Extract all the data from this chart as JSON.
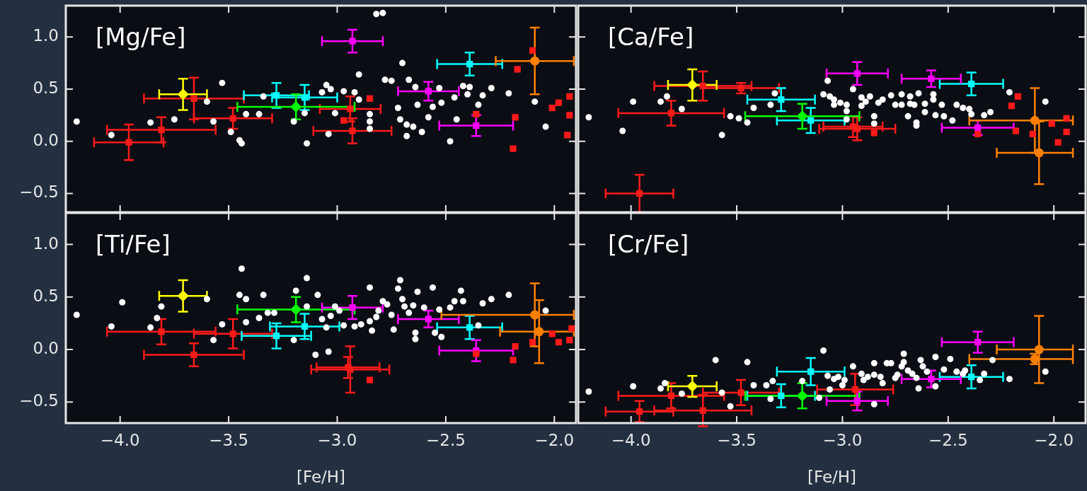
{
  "chart_data": [
    {
      "type": "scatter",
      "title": "[Mg/Fe]",
      "xlim": [
        -4.25,
        -1.9
      ],
      "ylim": [
        -0.68,
        1.3
      ],
      "xticks": [
        {
          "value": -4,
          "label": null
        },
        {
          "value": -3.5,
          "label": null
        },
        {
          "value": -3,
          "label": null
        },
        {
          "value": -2.5,
          "label": null
        },
        {
          "value": -2,
          "label": null
        }
      ],
      "yticks": [
        {
          "value": -0.5,
          "label": "−0.5"
        },
        {
          "value": 0,
          "label": "0.0"
        },
        {
          "value": 0.5,
          "label": "0.5"
        },
        {
          "value": 1,
          "label": "1.0"
        }
      ],
      "tick_labels": "y",
      "series": [
        {
          "color": "#ffffff",
          "marker": "circle",
          "x": [
            -4.2,
            -4.04,
            -3.86,
            -3.75,
            -3.6,
            -3.57,
            -3.53,
            -3.49,
            -3.45,
            -3.44,
            -3.42,
            -3.36,
            -3.34,
            -3.2,
            -3.14,
            -3.15,
            -3.07,
            -3.05,
            -3.03,
            -3.01,
            -3.04,
            -2.97,
            -2.92,
            -2.9,
            -2.9,
            -2.85,
            -2.85,
            -2.85,
            -2.82,
            -2.79,
            -2.78,
            -2.75,
            -2.7,
            -2.72,
            -2.71,
            -2.68,
            -2.68,
            -2.67,
            -2.64,
            -2.65,
            -2.63,
            -2.61,
            -2.58,
            -2.56,
            -2.53,
            -2.52,
            -2.48,
            -2.46,
            -2.45,
            -2.42,
            -2.39,
            -2.4,
            -2.35,
            -2.33,
            -2.29,
            -2.21,
            -2.09,
            -2.04
          ],
          "values": [
            0.19,
            0.06,
            0.18,
            0.21,
            0.38,
            0.19,
            0.56,
            0.09,
            0.01,
            -0.02,
            0.26,
            0.26,
            0.43,
            0.19,
            -0.02,
            0.27,
            0.47,
            0.54,
            0.5,
            0.27,
            0.07,
            0.48,
            0.47,
            0.64,
            0.4,
            0.26,
            0.19,
            0.12,
            1.22,
            1.23,
            0.59,
            0.58,
            0.75,
            0.32,
            0.21,
            0.16,
            0.05,
            0.59,
            0.52,
            0.14,
            0.35,
            0.09,
            0.23,
            0.33,
            0.51,
            0.37,
            0.0,
            0.42,
            0.21,
            0.53,
            0.52,
            0.45,
            0.35,
            0.44,
            0.51,
            0.46,
            0.38,
            0.14
          ]
        },
        {
          "color": "#ff1a1a",
          "marker": "square",
          "x": [
            -2.85,
            -2.97,
            -2.36,
            -2.18,
            -2.19,
            -2.17,
            -2.1,
            -2.01,
            -1.98,
            -1.93,
            -1.93,
            -1.94
          ],
          "values": [
            0.41,
            0.2,
            0.26,
            0.23,
            -0.07,
            0.69,
            0.87,
            0.32,
            0.37,
            0.43,
            0.25,
            0.06
          ]
        },
        {
          "color": "#ff1a1a",
          "marker": "square",
          "x": [
            -3.96,
            -3.81,
            -3.66,
            -3.48,
            -2.94,
            -2.93
          ],
          "values": [
            -0.01,
            0.11,
            0.41,
            0.22,
            0.31,
            0.1
          ],
          "xerrors": [
            0.16,
            0.25,
            0.23,
            0.18,
            0.14,
            0.18
          ],
          "errors": [
            0.17,
            0.12,
            0.2,
            0.1,
            0.12,
            0.12
          ]
        },
        {
          "color": "#ffff00",
          "marker": "diamond",
          "x": [
            -3.71
          ],
          "values": [
            0.45
          ],
          "xerrors": [
            0.11
          ],
          "errors": [
            0.15
          ]
        },
        {
          "color": "#00ffff",
          "marker": "square",
          "x": [
            -3.28,
            -3.15,
            -2.39
          ],
          "values": [
            0.44,
            0.42,
            0.74
          ],
          "xerrors": [
            0.15,
            0.15,
            0.15
          ],
          "errors": [
            0.12,
            0.12,
            0.11
          ]
        },
        {
          "color": "#00ff00",
          "marker": "diamond",
          "x": [
            -3.19
          ],
          "values": [
            0.33
          ],
          "xerrors": [
            0.27
          ],
          "errors": [
            0.12
          ]
        },
        {
          "color": "#ff00ff",
          "marker": "square",
          "x": [
            -2.93,
            -2.58,
            -2.36
          ],
          "values": [
            0.96,
            0.48,
            0.15
          ],
          "xerrors": [
            0.14,
            0.14,
            0.17
          ],
          "errors": [
            0.11,
            0.09,
            0.1
          ]
        },
        {
          "color": "#ff8000",
          "marker": "circle",
          "x": [
            -2.09
          ],
          "values": [
            0.77
          ],
          "xerrors": [
            0.18
          ],
          "errors": [
            0.32
          ]
        }
      ]
    },
    {
      "type": "scatter",
      "title": "[Ca/Fe]",
      "xlim": [
        -4.25,
        -1.85
      ],
      "ylim": [
        -0.68,
        1.3
      ],
      "xticks": [
        {
          "value": -4,
          "label": null
        },
        {
          "value": -3.5,
          "label": null
        },
        {
          "value": -3,
          "label": null
        },
        {
          "value": -2.5,
          "label": null
        },
        {
          "value": -2,
          "label": null
        }
      ],
      "yticks": [
        {
          "value": -0.5,
          "label": null
        },
        {
          "value": 0,
          "label": null
        },
        {
          "value": 0.5,
          "label": null
        },
        {
          "value": 1,
          "label": null
        }
      ],
      "tick_labels": false,
      "series": [
        {
          "color": "#ffffff",
          "marker": "circle",
          "x": [
            -4.2,
            -4.04,
            -3.99,
            -3.86,
            -3.83,
            -3.76,
            -3.57,
            -3.53,
            -3.49,
            -3.45,
            -3.42,
            -3.34,
            -3.32,
            -3.07,
            -3.09,
            -3.06,
            -3.04,
            -3.04,
            -3.01,
            -2.98,
            -2.98,
            -2.95,
            -2.98,
            -2.91,
            -2.91,
            -2.89,
            -2.87,
            -2.85,
            -2.85,
            -2.83,
            -2.81,
            -2.77,
            -2.75,
            -2.72,
            -2.72,
            -2.68,
            -2.68,
            -2.69,
            -2.66,
            -2.65,
            -2.65,
            -2.64,
            -2.61,
            -2.61,
            -2.57,
            -2.56,
            -2.57,
            -2.53,
            -2.52,
            -2.48,
            -2.46,
            -2.43,
            -2.4,
            -2.39,
            -2.33,
            -2.3,
            -2.21,
            -2.04
          ],
          "values": [
            0.23,
            0.1,
            0.38,
            0.38,
            0.43,
            0.31,
            0.06,
            0.24,
            0.22,
            0.18,
            0.32,
            0.35,
            0.46,
            0.58,
            0.45,
            0.43,
            0.4,
            0.35,
            0.37,
            0.35,
            0.29,
            0.5,
            0.21,
            0.42,
            0.34,
            0.38,
            0.43,
            0.24,
            0.17,
            0.37,
            0.4,
            0.44,
            0.35,
            0.45,
            0.35,
            0.36,
            0.43,
            0.24,
            0.35,
            0.18,
            0.15,
            0.46,
            0.36,
            0.28,
            0.45,
            0.25,
            0.4,
            0.35,
            0.24,
            0.2,
            0.35,
            0.32,
            0.31,
            0.26,
            0.25,
            0.28,
            0.47,
            0.38
          ]
        },
        {
          "color": "#ff1a1a",
          "marker": "square",
          "x": [
            -3.96,
            -3.81,
            -3.66,
            -3.48,
            -2.93,
            -2.95
          ],
          "values": [
            -0.5,
            0.27,
            0.53,
            0.51,
            0.12,
            0.14
          ],
          "xerrors": [
            0.16,
            0.25,
            0.23,
            0.18,
            0.18,
            0.14
          ],
          "errors": [
            0.18,
            0.12,
            0.14,
            0.05,
            0.11,
            0.1
          ]
        },
        {
          "color": "#ffff00",
          "marker": "diamond",
          "x": [
            -3.71
          ],
          "values": [
            0.54
          ],
          "xerrors": [
            0.115
          ],
          "errors": [
            0.15
          ]
        },
        {
          "color": "#00ffff",
          "marker": "square",
          "x": [
            -3.29,
            -3.15,
            -2.39
          ],
          "values": [
            0.4,
            0.2,
            0.55
          ],
          "xerrors": [
            0.16,
            0.16,
            0.15
          ],
          "errors": [
            0.11,
            0.12,
            0.11
          ]
        },
        {
          "color": "#00ff00",
          "marker": "diamond",
          "x": [
            -3.19
          ],
          "values": [
            0.24
          ],
          "xerrors": [
            0.27
          ],
          "errors": [
            0.12
          ]
        },
        {
          "color": "#ff00ff",
          "marker": "square",
          "x": [
            -2.93,
            -2.58,
            -2.36
          ],
          "values": [
            0.65,
            0.6,
            0.13
          ],
          "xerrors": [
            0.145,
            0.14,
            0.17
          ],
          "errors": [
            0.11,
            0.08,
            0.07
          ]
        },
        {
          "color": "#ff8000",
          "marker": "circle",
          "x": [
            -2.09,
            -2.07
          ],
          "values": [
            0.2,
            -0.11
          ],
          "xerrors": [
            [
              -2.4,
              -1.91
            ],
            [
              -2.27,
              -1.91
            ]
          ],
          "errors": [
            0.31,
            0.3
          ]
        },
        {
          "color": "#ff1a1a",
          "marker": "square",
          "x": [
            -2.85,
            -2.36,
            -2.18,
            -2.2,
            -2.17,
            -2.1,
            -2.01,
            -1.94,
            -1.98,
            -1.94
          ],
          "values": [
            0.08,
            0.07,
            0.1,
            0.34,
            0.43,
            0.07,
            0.17,
            0.22,
            -0.01,
            0.09
          ]
        }
      ]
    },
    {
      "type": "scatter",
      "title": "[Ti/Fe]",
      "xlabel": "[Fe/H]",
      "xlim": [
        -4.25,
        -1.9
      ],
      "ylim": [
        -0.7,
        1.3
      ],
      "xticks": [
        {
          "value": -4,
          "label": "−4.0"
        },
        {
          "value": -3.5,
          "label": "−3.5"
        },
        {
          "value": -3,
          "label": "−3.0"
        },
        {
          "value": -2.5,
          "label": "−2.5"
        },
        {
          "value": -2,
          "label": "−2.0"
        }
      ],
      "yticks": [
        {
          "value": -0.5,
          "label": "−0.5"
        },
        {
          "value": 0,
          "label": "0.0"
        },
        {
          "value": 0.5,
          "label": "0.5"
        },
        {
          "value": 1,
          "label": "1.0"
        }
      ],
      "series": [
        {
          "color": "#ffffff",
          "marker": "circle",
          "x": [
            -4.2,
            -4.04,
            -3.99,
            -3.86,
            -3.83,
            -3.81,
            -3.6,
            -3.57,
            -3.53,
            -3.45,
            -3.44,
            -3.42,
            -3.42,
            -3.36,
            -3.34,
            -3.32,
            -3.29,
            -3.2,
            -3.19,
            -3.14,
            -3.14,
            -3.09,
            -3.1,
            -3.07,
            -3.04,
            -3.03,
            -3.05,
            -3.01,
            -2.99,
            -2.97,
            -2.92,
            -2.89,
            -2.85,
            -2.85,
            -2.84,
            -2.82,
            -2.81,
            -2.79,
            -2.77,
            -2.75,
            -2.74,
            -2.72,
            -2.71,
            -2.7,
            -2.69,
            -2.67,
            -2.65,
            -2.64,
            -2.64,
            -2.63,
            -2.6,
            -2.56,
            -2.55,
            -2.53,
            -2.52,
            -2.48,
            -2.46,
            -2.43,
            -2.42,
            -2.35,
            -2.33,
            -2.29,
            -2.21,
            -2.04
          ],
          "values": [
            0.33,
            0.22,
            0.45,
            0.21,
            0.3,
            0.41,
            0.48,
            0.09,
            0.24,
            0.52,
            0.77,
            0.48,
            0.26,
            0.3,
            0.52,
            0.35,
            0.35,
            0.09,
            0.56,
            0.68,
            0.41,
            0.52,
            -0.05,
            0.29,
            -0.02,
            0.32,
            0.21,
            0.41,
            0.37,
            0.23,
            0.22,
            0.24,
            0.59,
            0.27,
            0.18,
            0.31,
            0.37,
            0.46,
            0.43,
            0.33,
            0.19,
            0.58,
            0.66,
            0.48,
            0.41,
            0.35,
            0.42,
            0.16,
            0.1,
            0.55,
            0.4,
            0.59,
            0.16,
            0.38,
            0.12,
            0.4,
            0.46,
            0.56,
            0.46,
            0.23,
            0.44,
            0.48,
            0.52,
            0.37
          ]
        },
        {
          "color": "#ff1a1a",
          "marker": "square",
          "x": [
            -2.85,
            -2.36,
            -2.19,
            -2.18,
            -2.1,
            -2.01,
            -1.98,
            -1.93,
            -1.92
          ],
          "values": [
            -0.29,
            -0.04,
            -0.1,
            0.03,
            0.07,
            0.15,
            0.07,
            0.09,
            0.2
          ]
        },
        {
          "color": "#ff1a1a",
          "marker": "square",
          "x": [
            -3.81,
            -3.66,
            -3.48,
            -2.94,
            -2.95
          ],
          "values": [
            0.17,
            -0.05,
            0.15,
            -0.19,
            -0.17
          ],
          "xerrors": [
            0.25,
            0.23,
            0.18,
            0.18,
            0.145
          ],
          "errors": [
            0.12,
            0.11,
            0.14,
            0.22,
            0.1
          ]
        },
        {
          "color": "#ffff00",
          "marker": "diamond",
          "x": [
            -3.71
          ],
          "values": [
            0.51
          ],
          "xerrors": [
            0.11
          ],
          "errors": [
            0.15
          ]
        },
        {
          "color": "#00ffff",
          "marker": "square",
          "x": [
            -3.28,
            -3.15,
            -2.39
          ],
          "values": [
            0.13,
            0.22,
            0.21
          ],
          "xerrors": [
            0.16,
            0.16,
            0.15
          ],
          "errors": [
            0.12,
            0.12,
            0.11
          ]
        },
        {
          "color": "#00ff00",
          "marker": "diamond",
          "x": [
            -3.19
          ],
          "values": [
            0.38
          ],
          "xerrors": [
            0.27
          ],
          "errors": [
            0.12
          ]
        },
        {
          "color": "#ff00ff",
          "marker": "square",
          "x": [
            -2.93,
            -2.58,
            -2.36
          ],
          "values": [
            0.4,
            0.29,
            -0.01
          ],
          "xerrors": [
            0.14,
            0.14,
            0.17
          ],
          "errors": [
            0.11,
            0.08,
            0.1
          ]
        },
        {
          "color": "#ff8000",
          "marker": "circle",
          "x": [
            -2.09,
            -2.07
          ],
          "values": [
            0.33,
            0.17
          ],
          "xerrors": [
            [
              -2.52,
              -1.91
            ],
            [
              -2.25,
              -1.91
            ]
          ],
          "errors": [
            0.3,
            0.3
          ]
        }
      ]
    },
    {
      "type": "scatter",
      "title": "[Cr/Fe]",
      "xlabel": "[Fe/H]",
      "xlim": [
        -4.25,
        -1.85
      ],
      "ylim": [
        -0.7,
        1.3
      ],
      "xticks": [
        {
          "value": -4,
          "label": "−4.0"
        },
        {
          "value": -3.5,
          "label": "−3.5"
        },
        {
          "value": -3,
          "label": "−3.0"
        },
        {
          "value": -2.5,
          "label": "−2.5"
        },
        {
          "value": -2,
          "label": "−2.0"
        }
      ],
      "yticks": [
        {
          "value": -0.5,
          "label": null
        },
        {
          "value": 0,
          "label": null
        },
        {
          "value": 0.5,
          "label": null
        },
        {
          "value": 1,
          "label": null
        }
      ],
      "tick_labels": "x",
      "series": [
        {
          "color": "#ffffff",
          "marker": "circle",
          "x": [
            -4.2,
            -3.99,
            -3.86,
            -3.84,
            -3.76,
            -3.6,
            -3.57,
            -3.53,
            -3.45,
            -3.42,
            -3.36,
            -3.33,
            -3.34,
            -3.19,
            -3.11,
            -3.09,
            -3.07,
            -3.04,
            -3.02,
            -3.06,
            -3.0,
            -2.99,
            -2.95,
            -2.91,
            -2.9,
            -2.88,
            -2.85,
            -2.85,
            -2.82,
            -2.85,
            -2.81,
            -2.79,
            -2.77,
            -2.75,
            -2.74,
            -2.72,
            -2.71,
            -2.71,
            -2.69,
            -2.67,
            -2.65,
            -2.64,
            -2.63,
            -2.62,
            -2.6,
            -2.56,
            -2.56,
            -2.52,
            -2.49,
            -2.46,
            -2.43,
            -2.42,
            -2.35,
            -2.33,
            -2.29,
            -2.21,
            -2.04
          ],
          "values": [
            -0.4,
            -0.35,
            -0.37,
            -0.32,
            -0.42,
            -0.1,
            -0.41,
            -0.54,
            -0.12,
            -0.34,
            -0.34,
            -0.3,
            -0.47,
            -0.3,
            -0.46,
            -0.01,
            -0.25,
            -0.28,
            -0.26,
            -0.38,
            -0.34,
            -0.29,
            -0.16,
            -0.23,
            -0.29,
            -0.26,
            -0.13,
            -0.24,
            -0.26,
            -0.52,
            -0.32,
            -0.13,
            -0.13,
            -0.27,
            -0.24,
            -0.16,
            -0.04,
            -0.12,
            -0.2,
            -0.23,
            -0.27,
            -0.37,
            -0.1,
            -0.16,
            -0.21,
            -0.07,
            -0.35,
            -0.19,
            -0.09,
            -0.21,
            -0.23,
            -0.2,
            -0.29,
            -0.23,
            -0.1,
            -0.28,
            -0.21
          ]
        },
        {
          "color": "#ff1a1a",
          "marker": "square",
          "x": [
            -3.96,
            -3.81,
            -3.66,
            -3.48,
            -2.94
          ],
          "values": [
            -0.59,
            -0.44,
            -0.58,
            -0.41,
            -0.38
          ],
          "xerrors": [
            0.16,
            0.25,
            0.23,
            0.18,
            0.18
          ],
          "errors": [
            0.1,
            0.12,
            0.15,
            0.12,
            0.15
          ]
        },
        {
          "color": "#ffff00",
          "marker": "diamond",
          "x": [
            -3.71
          ],
          "values": [
            -0.35
          ],
          "xerrors": [
            0.115
          ],
          "errors": [
            0.1
          ]
        },
        {
          "color": "#00ffff",
          "marker": "square",
          "x": [
            -3.29,
            -3.15,
            -2.39
          ],
          "values": [
            -0.44,
            -0.21,
            -0.26
          ],
          "xerrors": [
            0.16,
            0.16,
            0.15
          ],
          "errors": [
            0.11,
            0.13,
            0.11
          ]
        },
        {
          "color": "#00ff00",
          "marker": "diamond",
          "x": [
            -3.19
          ],
          "values": [
            -0.44
          ],
          "xerrors": [
            0.27
          ],
          "errors": [
            0.12
          ]
        },
        {
          "color": "#ff00ff",
          "marker": "square",
          "x": [
            -2.93,
            -2.58,
            -2.36
          ],
          "values": [
            -0.49,
            -0.28,
            0.07
          ],
          "xerrors": [
            0.145,
            0.14,
            0.17
          ],
          "errors": [
            0.09,
            0.08,
            0.1
          ]
        },
        {
          "color": "#ff8000",
          "marker": "circle",
          "x": [
            -2.07,
            -2.09
          ],
          "values": [
            0.0,
            -0.09
          ],
          "xerrors": [
            [
              -2.27,
              -1.91
            ],
            [
              -2.4,
              -1.91
            ]
          ],
          "errors": [
            0.32,
            0.05
          ]
        }
      ]
    }
  ]
}
